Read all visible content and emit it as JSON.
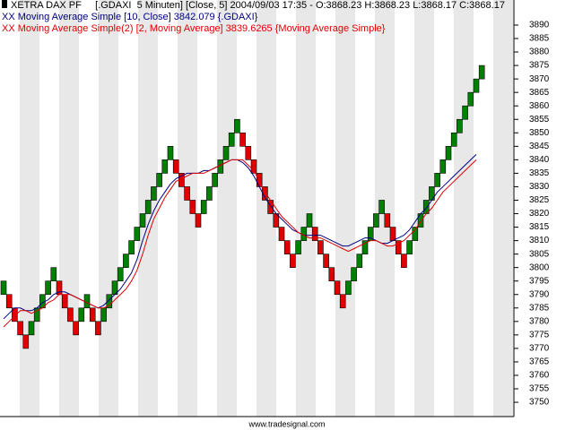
{
  "chart_data": {
    "type": "renko",
    "title": "XETRA DAX PF     [.GDAXI  5 Minuten] [Close, 5] 2004/09/03 17:35 - O:3868.23 H:3868.23 L:3868.17 C:3868.17",
    "footer": "www.tradesignal.com",
    "up_color": "#008000",
    "down_color": "#e00000",
    "bricks": [
      [
        3790,
        3795
      ],
      [
        3790,
        3785
      ],
      [
        3785,
        3780
      ],
      [
        3780,
        3775
      ],
      [
        3775,
        3770
      ],
      [
        3775,
        3780
      ],
      [
        3780,
        3785
      ],
      [
        3785,
        3790
      ],
      [
        3790,
        3795
      ],
      [
        3795,
        3800
      ],
      [
        3795,
        3790
      ],
      [
        3790,
        3785
      ],
      [
        3785,
        3780
      ],
      [
        3780,
        3775
      ],
      [
        3780,
        3785
      ],
      [
        3785,
        3790
      ],
      [
        3785,
        3780
      ],
      [
        3780,
        3775
      ],
      [
        3780,
        3785
      ],
      [
        3785,
        3790
      ],
      [
        3790,
        3795
      ],
      [
        3795,
        3800
      ],
      [
        3800,
        3805
      ],
      [
        3805,
        3810
      ],
      [
        3810,
        3815
      ],
      [
        3815,
        3820
      ],
      [
        3820,
        3825
      ],
      [
        3825,
        3830
      ],
      [
        3830,
        3835
      ],
      [
        3835,
        3840
      ],
      [
        3840,
        3845
      ],
      [
        3840,
        3835
      ],
      [
        3835,
        3830
      ],
      [
        3830,
        3825
      ],
      [
        3825,
        3820
      ],
      [
        3820,
        3815
      ],
      [
        3820,
        3825
      ],
      [
        3825,
        3830
      ],
      [
        3830,
        3835
      ],
      [
        3835,
        3840
      ],
      [
        3840,
        3845
      ],
      [
        3845,
        3850
      ],
      [
        3850,
        3855
      ],
      [
        3850,
        3845
      ],
      [
        3845,
        3840
      ],
      [
        3840,
        3835
      ],
      [
        3835,
        3830
      ],
      [
        3830,
        3825
      ],
      [
        3825,
        3820
      ],
      [
        3820,
        3815
      ],
      [
        3815,
        3810
      ],
      [
        3810,
        3805
      ],
      [
        3805,
        3800
      ],
      [
        3805,
        3810
      ],
      [
        3810,
        3815
      ],
      [
        3815,
        3820
      ],
      [
        3815,
        3810
      ],
      [
        3810,
        3805
      ],
      [
        3805,
        3800
      ],
      [
        3800,
        3795
      ],
      [
        3795,
        3790
      ],
      [
        3790,
        3785
      ],
      [
        3790,
        3795
      ],
      [
        3795,
        3800
      ],
      [
        3800,
        3805
      ],
      [
        3805,
        3810
      ],
      [
        3810,
        3815
      ],
      [
        3815,
        3820
      ],
      [
        3820,
        3825
      ],
      [
        3820,
        3815
      ],
      [
        3815,
        3810
      ],
      [
        3810,
        3805
      ],
      [
        3805,
        3800
      ],
      [
        3805,
        3810
      ],
      [
        3810,
        3815
      ],
      [
        3815,
        3820
      ],
      [
        3820,
        3825
      ],
      [
        3825,
        3830
      ],
      [
        3830,
        3835
      ],
      [
        3835,
        3840
      ],
      [
        3840,
        3845
      ],
      [
        3845,
        3850
      ],
      [
        3850,
        3855
      ],
      [
        3855,
        3860
      ],
      [
        3860,
        3865
      ],
      [
        3865,
        3870
      ],
      [
        3870,
        3875
      ]
    ],
    "series": [
      {
        "name": "Moving Average Simple [10, Close] 3842.079 {.GDAXI}",
        "color": "#000080",
        "values": [
          3781,
          3783,
          3785,
          3785,
          3784,
          3784,
          3785,
          3787,
          3788,
          3790,
          3791,
          3791,
          3790,
          3789,
          3788,
          3787,
          3786,
          3785,
          3786,
          3788,
          3790,
          3792,
          3795,
          3798,
          3803,
          3810,
          3816,
          3821,
          3825,
          3828,
          3831,
          3833,
          3834,
          3835,
          3835,
          3835,
          3836,
          3836,
          3837,
          3838,
          3839,
          3840,
          3840,
          3839,
          3837,
          3834,
          3830,
          3826,
          3823,
          3820,
          3818,
          3816,
          3814,
          3813,
          3812,
          3812,
          3812,
          3812,
          3811,
          3810,
          3809,
          3808,
          3808,
          3809,
          3810,
          3811,
          3811,
          3810,
          3809,
          3809,
          3810,
          3811,
          3812,
          3814,
          3817,
          3820,
          3822,
          3825,
          3828,
          3830,
          3832,
          3834,
          3836,
          3838,
          3840,
          3842,
          null
        ]
      },
      {
        "name": "Moving Average Simple(2) [2, Moving Average] 3839.6265 {Moving Average Simple}",
        "color": "#e00000",
        "values": [
          3778,
          3780,
          3782,
          3784,
          3784,
          3783,
          3784,
          3785,
          3787,
          3788,
          3790,
          3790,
          3790,
          3789,
          3788,
          3787,
          3786,
          3785,
          3785,
          3786,
          3788,
          3790,
          3792,
          3795,
          3799,
          3805,
          3812,
          3818,
          3822,
          3826,
          3829,
          3832,
          3833,
          3834,
          3835,
          3835,
          3835,
          3836,
          3837,
          3838,
          3839,
          3840,
          3840,
          3840,
          3838,
          3836,
          3832,
          3828,
          3825,
          3822,
          3819,
          3817,
          3815,
          3813,
          3812,
          3811,
          3811,
          3811,
          3810,
          3809,
          3808,
          3807,
          3806,
          3807,
          3808,
          3809,
          3810,
          3810,
          3809,
          3808,
          3808,
          3809,
          3810,
          3812,
          3814,
          3817,
          3820,
          3822,
          3825,
          3828,
          3830,
          3832,
          3834,
          3836,
          3838,
          3840,
          null
        ]
      }
    ],
    "ylim": [
      3744.7,
      3899.3
    ],
    "yticks": [
      3750,
      3755,
      3760,
      3765,
      3770,
      3775,
      3780,
      3785,
      3790,
      3795,
      3800,
      3805,
      3810,
      3815,
      3820,
      3825,
      3830,
      3835,
      3840,
      3845,
      3850,
      3855,
      3860,
      3865,
      3870,
      3875,
      3880,
      3885,
      3890
    ]
  }
}
